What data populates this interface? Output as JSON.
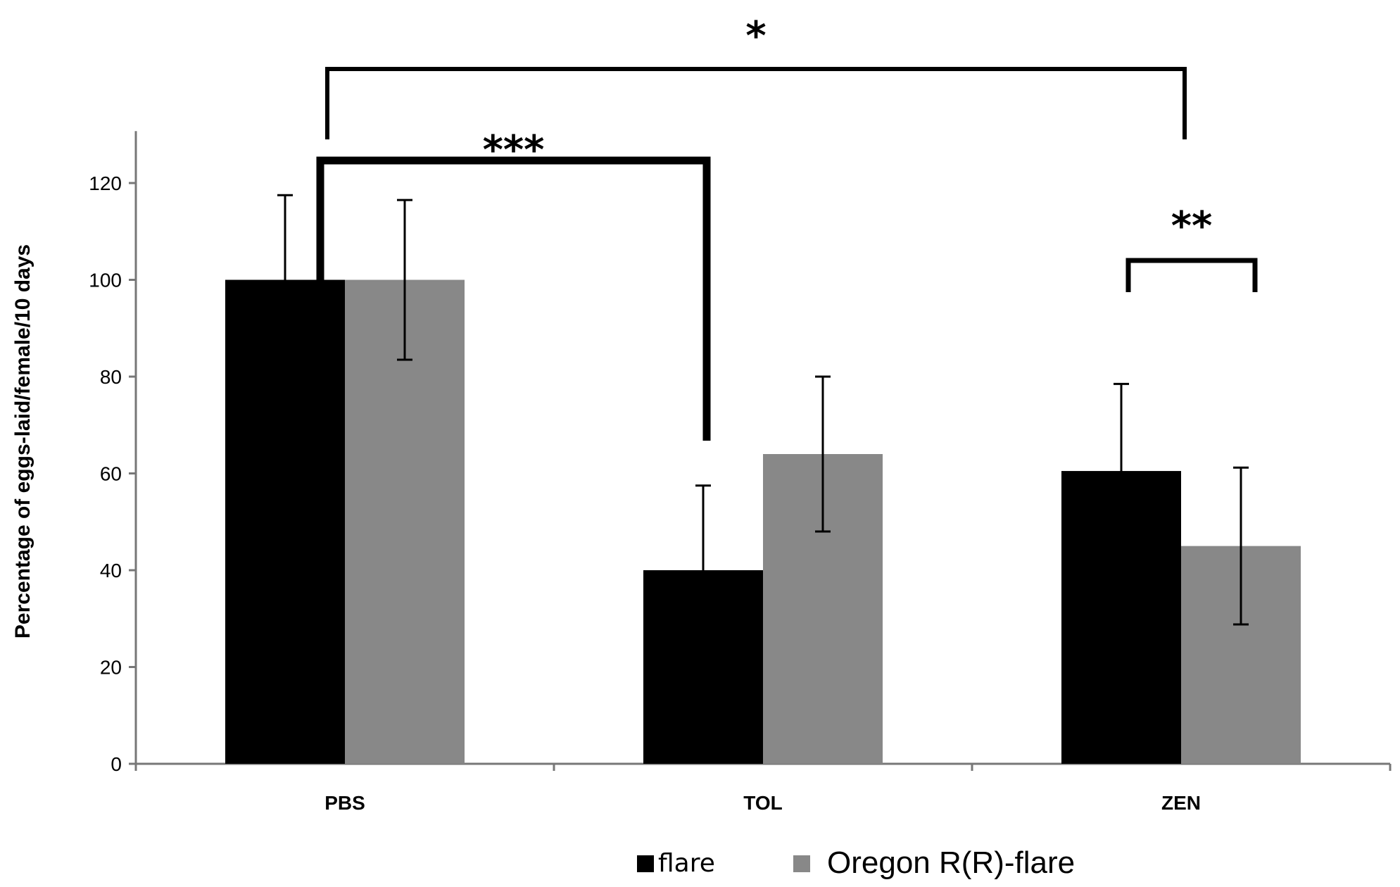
{
  "chart_data": {
    "type": "bar",
    "title": "",
    "xlabel": "",
    "ylabel": "Percentage of eggs-laid/female/10 days",
    "ylim": [
      0,
      130
    ],
    "yticks": [
      0,
      20,
      40,
      60,
      80,
      100,
      120
    ],
    "ytick_labels": [
      "0",
      "20",
      "40",
      "60",
      "80",
      "100",
      "120"
    ],
    "categories": [
      "PBS",
      "TOL",
      "ZEN"
    ],
    "series": [
      {
        "name": "flare",
        "color": "#000000",
        "values": [
          100,
          40,
          60.5
        ],
        "errors": [
          17.5,
          17.5,
          18
        ]
      },
      {
        "name": "Oregon R(R)-flare",
        "color": "#888888",
        "values": [
          100,
          64,
          45
        ],
        "errors": [
          16.5,
          16,
          16.2
        ]
      }
    ],
    "legend": {
      "position": "bottom-center",
      "entries": [
        "flare",
        "Oregon R(R)-flare"
      ]
    },
    "significance": [
      {
        "label": "*",
        "from": "PBS-flare",
        "to": "ZEN-flare"
      },
      {
        "label": "***",
        "from": "PBS-flare",
        "to": "TOL-flare"
      },
      {
        "label": "**",
        "from": "ZEN-flare",
        "to": "ZEN-Oregon R(R)-flare"
      }
    ],
    "grid": false
  }
}
